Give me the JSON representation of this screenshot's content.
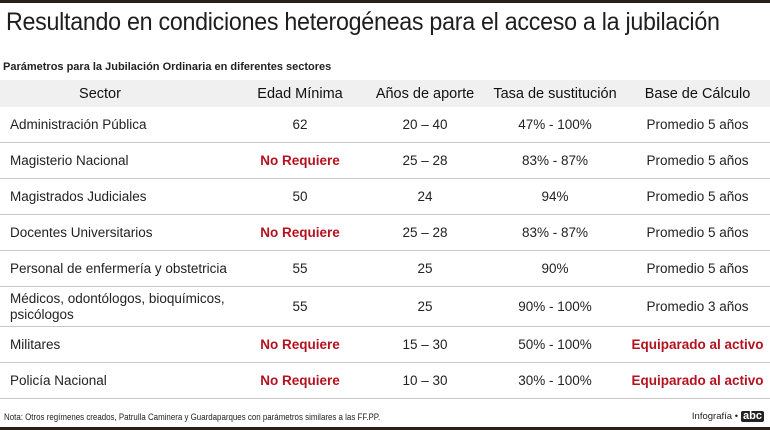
{
  "header": {
    "title": "Resultando en condiciones heterogéneas para el acceso a la jubilación",
    "subtitle": "Parámetros para la Jubilación Ordinaria en diferentes sectores"
  },
  "table": {
    "columns": [
      "Sector",
      "Edad Mínima",
      "Años de aporte",
      "Tasa de sustitución",
      "Base de Cálculo"
    ],
    "rows": [
      {
        "sector": "Administración Pública",
        "edad": "62",
        "aportes": "20 – 40",
        "tasa": "47% - 100%",
        "base": "Promedio 5 años"
      },
      {
        "sector": "Magisterio Nacional",
        "edad": "No Requiere",
        "aportes": "25 – 28",
        "tasa": "83% - 87%",
        "base": "Promedio 5 años"
      },
      {
        "sector": "Magistrados Judiciales",
        "edad": "50",
        "aportes": "24",
        "tasa": "94%",
        "base": "Promedio 5 años"
      },
      {
        "sector": "Docentes Universitarios",
        "edad": "No Requiere",
        "aportes": "25 – 28",
        "tasa": "83% - 87%",
        "base": "Promedio 5 años"
      },
      {
        "sector": "Personal de enfermería y obstetricia",
        "edad": "55",
        "aportes": "25",
        "tasa": "90%",
        "base": "Promedio 5 años"
      },
      {
        "sector": "Médicos, odontólogos, bioquímicos, psicólogos",
        "edad": "55",
        "aportes": "25",
        "tasa": "90% - 100%",
        "base": "Promedio 3 años"
      },
      {
        "sector": "Militares",
        "edad": "No Requiere",
        "aportes": "15 – 30",
        "tasa": "50% - 100%",
        "base": "Equiparado al activo"
      },
      {
        "sector": "Policía Nacional",
        "edad": "No Requiere",
        "aportes": "10 – 30",
        "tasa": "30% - 100%",
        "base": "Equiparado al activo"
      }
    ]
  },
  "footer": {
    "note": "Nota: Otros regímenes creados, Patrulla Caminera y Guardaparques con parámetros similares a las FF.PP.",
    "credit": "Infografía •",
    "logo": "abc"
  },
  "colors": {
    "highlight": "#b3121e",
    "header_bg": "#f0f0f0",
    "frame": "#2a2018"
  }
}
